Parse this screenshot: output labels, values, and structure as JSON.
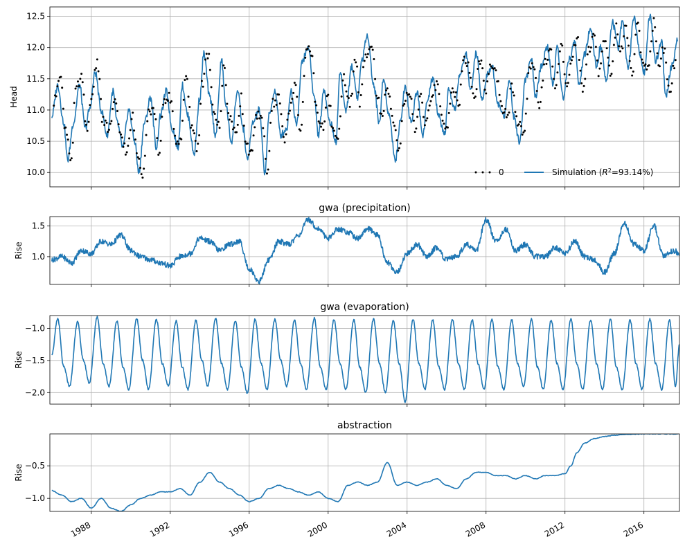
{
  "colors": {
    "simulation": "#1f77b4",
    "observations": "#000000",
    "grid": "#b0b0b0"
  },
  "chart_data": [
    {
      "type": "line",
      "panel": "head",
      "title": "",
      "xlabel": "",
      "ylabel": "Head",
      "xlim": [
        1985.9,
        2017.8
      ],
      "ylim": [
        9.77,
        12.65
      ],
      "yticks": [
        "10.0",
        "10.5",
        "11.0",
        "11.5",
        "12.0",
        "12.5"
      ],
      "grid": true,
      "legend_position": "lower-right",
      "legend": [
        "0",
        "Simulation"
      ],
      "r2_label": "=93.14%)",
      "series": [
        {
          "name": "Simulation",
          "style": "line",
          "color": "#1f77b4",
          "x": [
            1986.0,
            1986.3,
            1986.6,
            1986.8,
            1987.1,
            1987.4,
            1987.7,
            1987.9,
            1988.2,
            1988.5,
            1988.8,
            1989.1,
            1989.3,
            1989.6,
            1989.9,
            1990.2,
            1990.4,
            1990.7,
            1991.0,
            1991.3,
            1991.5,
            1991.8,
            1992.1,
            1992.4,
            1992.6,
            1992.9,
            1993.2,
            1993.5,
            1993.7,
            1994.0,
            1994.3,
            1994.6,
            1994.8,
            1995.1,
            1995.4,
            1995.7,
            1995.9,
            1996.2,
            1996.5,
            1996.8,
            1997.0,
            1997.3,
            1997.6,
            1997.9,
            1998.1,
            1998.4,
            1998.7,
            1999.0,
            1999.3,
            1999.5,
            1999.8,
            2000.1,
            2000.4,
            2000.6,
            2000.9,
            2001.2,
            2001.5,
            2001.7,
            2002.0,
            2002.3,
            2002.6,
            2002.8,
            2003.1,
            2003.4,
            2003.7,
            2003.9,
            2004.2,
            2004.5,
            2004.8,
            2005.0,
            2005.3,
            2005.6,
            2005.9,
            2006.1,
            2006.4,
            2006.7,
            2007.0,
            2007.2,
            2007.5,
            2007.8,
            2008.1,
            2008.3,
            2008.6,
            2008.9,
            2009.2,
            2009.4,
            2009.7,
            2010.0,
            2010.3,
            2010.5,
            2010.8,
            2011.1,
            2011.4,
            2011.6,
            2011.9,
            2012.2,
            2012.5,
            2012.7,
            2013.0,
            2013.3,
            2013.6,
            2013.8,
            2014.1,
            2014.4,
            2014.7,
            2014.9,
            2015.2,
            2015.5,
            2015.8,
            2016.0,
            2016.3,
            2016.6,
            2016.9,
            2017.1,
            2017.4,
            2017.7
          ],
          "values": [
            10.9,
            11.4,
            10.8,
            10.2,
            10.8,
            11.4,
            10.7,
            11.0,
            11.6,
            11.0,
            10.6,
            11.3,
            10.8,
            10.4,
            11.0,
            10.5,
            10.0,
            10.8,
            11.2,
            10.4,
            10.9,
            11.3,
            10.7,
            10.4,
            11.4,
            10.9,
            10.3,
            11.2,
            11.9,
            11.2,
            10.6,
            11.8,
            11.1,
            10.5,
            11.3,
            10.7,
            10.2,
            10.8,
            11.0,
            10.0,
            10.9,
            11.3,
            10.6,
            10.7,
            11.3,
            10.8,
            11.8,
            12.0,
            11.2,
            10.6,
            11.3,
            10.8,
            10.5,
            11.6,
            11.0,
            11.7,
            11.2,
            11.8,
            12.2,
            11.4,
            10.8,
            11.5,
            10.9,
            10.2,
            10.9,
            11.4,
            10.8,
            11.3,
            10.6,
            11.1,
            11.5,
            10.9,
            10.6,
            11.3,
            11.0,
            11.6,
            11.9,
            11.3,
            11.9,
            11.2,
            11.6,
            11.7,
            11.1,
            10.9,
            11.5,
            10.9,
            10.5,
            11.5,
            11.8,
            11.2,
            11.7,
            12.0,
            11.4,
            12.0,
            11.2,
            11.8,
            12.1,
            11.4,
            11.9,
            12.3,
            11.7,
            12.0,
            11.5,
            12.4,
            12.0,
            12.4,
            11.7,
            12.5,
            11.9,
            11.6,
            12.5,
            11.8,
            12.1,
            11.2,
            11.7,
            12.1
          ]
        },
        {
          "name": "0",
          "style": "dots",
          "color": "#000000",
          "x": [
            1986.1,
            1986.4,
            1986.7,
            1987.0,
            1987.2,
            1987.5,
            1987.8,
            1988.0,
            1988.3,
            1988.6,
            1988.9,
            1989.2,
            1989.5,
            1989.8,
            1990.1,
            1990.3,
            1990.6,
            1990.9,
            1991.2,
            1991.4,
            1991.7,
            1992.0,
            1992.3,
            1992.5,
            1992.8,
            1993.1,
            1993.4,
            1993.6,
            1993.9,
            1994.2,
            1994.5,
            1994.7,
            1995.0,
            1995.3,
            1995.6,
            1995.8,
            1996.1,
            1996.4,
            1996.7,
            1996.9,
            1997.2,
            1997.5,
            1997.8,
            1998.0,
            1998.3,
            1998.6,
            1998.9,
            1999.2,
            1999.4,
            1999.7,
            2000.0,
            2000.3,
            2000.5,
            2000.8,
            2001.1,
            2001.4,
            2001.6,
            2001.9,
            2002.2,
            2002.5,
            2002.7,
            2003.0,
            2003.3,
            2003.6,
            2003.8,
            2004.1,
            2004.4,
            2004.7,
            2004.9,
            2005.2,
            2005.5,
            2005.8,
            2006.0,
            2006.3,
            2006.6,
            2006.9,
            2007.1,
            2007.4,
            2007.7,
            2008.0,
            2008.2,
            2008.5,
            2008.8,
            2009.1,
            2009.3,
            2009.6,
            2009.9,
            2010.2,
            2010.4,
            2010.7,
            2011.0,
            2011.3,
            2011.5,
            2011.8,
            2012.1,
            2012.4,
            2012.6,
            2012.9,
            2013.2,
            2013.5,
            2013.7,
            2014.0,
            2014.3,
            2014.6,
            2014.8,
            2015.1,
            2015.4,
            2015.7,
            2015.9,
            2016.2,
            2016.5,
            2016.8,
            2017.0,
            2017.3,
            2017.6
          ],
          "values": [
            11.1,
            11.6,
            10.7,
            10.2,
            11.3,
            11.5,
            10.6,
            11.2,
            11.8,
            10.8,
            10.7,
            11.1,
            10.6,
            10.3,
            10.9,
            10.3,
            10.0,
            11.0,
            11.0,
            10.3,
            11.1,
            11.2,
            10.5,
            10.5,
            11.5,
            10.7,
            10.4,
            11.4,
            11.9,
            11.0,
            10.7,
            11.7,
            10.9,
            10.6,
            11.2,
            10.5,
            10.3,
            10.9,
            10.8,
            10.0,
            11.1,
            11.2,
            10.5,
            10.9,
            11.4,
            10.7,
            12.0,
            11.8,
            11.0,
            10.7,
            11.2,
            10.6,
            10.6,
            11.5,
            11.1,
            11.8,
            11.1,
            11.9,
            12.1,
            11.2,
            10.9,
            11.3,
            10.8,
            10.3,
            11.1,
            11.3,
            10.7,
            11.2,
            10.7,
            11.2,
            11.4,
            10.8,
            10.7,
            11.4,
            11.1,
            11.8,
            11.7,
            11.2,
            11.8,
            11.3,
            11.7,
            11.6,
            11.0,
            10.9,
            11.4,
            10.8,
            10.6,
            11.6,
            11.7,
            11.1,
            11.8,
            11.9,
            11.3,
            12.0,
            11.4,
            11.9,
            12.2,
            11.3,
            12.0,
            12.2,
            11.6,
            12.1,
            11.6,
            12.3,
            11.9,
            12.3,
            11.6,
            12.4,
            11.8,
            11.7,
            12.4,
            11.7,
            12.0,
            11.3,
            11.8
          ]
        }
      ]
    },
    {
      "type": "line",
      "panel": "precipitation",
      "title": "gwa (precipitation)",
      "xlabel": "",
      "ylabel": "Rise",
      "xlim": [
        1985.9,
        2017.8
      ],
      "ylim": [
        0.55,
        1.65
      ],
      "yticks": [
        "1.0",
        "1.5"
      ],
      "grid": true,
      "series": [
        {
          "x": [
            1986.0,
            1986.5,
            1987.0,
            1987.5,
            1988.0,
            1988.5,
            1989.0,
            1989.5,
            1990.0,
            1990.5,
            1991.0,
            1991.5,
            1992.0,
            1992.5,
            1993.0,
            1993.5,
            1994.0,
            1994.5,
            1995.0,
            1995.5,
            1996.0,
            1996.5,
            1997.0,
            1997.5,
            1998.0,
            1998.5,
            1999.0,
            1999.5,
            2000.0,
            2000.5,
            2001.0,
            2001.5,
            2002.0,
            2002.5,
            2003.0,
            2003.5,
            2004.0,
            2004.5,
            2005.0,
            2005.5,
            2006.0,
            2006.5,
            2007.0,
            2007.5,
            2008.0,
            2008.5,
            2009.0,
            2009.5,
            2010.0,
            2010.5,
            2011.0,
            2011.5,
            2012.0,
            2012.5,
            2013.0,
            2013.5,
            2014.0,
            2014.5,
            2015.0,
            2015.5,
            2016.0,
            2016.5,
            2017.0,
            2017.5,
            2017.8
          ],
          "values": [
            0.95,
            1.0,
            0.9,
            1.1,
            1.05,
            1.25,
            1.2,
            1.35,
            1.1,
            1.0,
            0.95,
            0.9,
            0.85,
            1.0,
            1.05,
            1.3,
            1.25,
            1.1,
            1.2,
            1.25,
            0.8,
            0.6,
            0.95,
            1.25,
            1.2,
            1.35,
            1.6,
            1.45,
            1.3,
            1.45,
            1.4,
            1.3,
            1.45,
            1.35,
            0.9,
            0.75,
            1.05,
            1.2,
            1.0,
            1.15,
            0.95,
            1.0,
            1.2,
            1.1,
            1.6,
            1.25,
            1.45,
            1.1,
            1.2,
            1.0,
            1.0,
            1.15,
            1.05,
            1.25,
            1.0,
            0.95,
            0.75,
            1.05,
            1.55,
            1.2,
            1.1,
            1.5,
            1.0,
            1.1,
            1.05
          ]
        }
      ]
    },
    {
      "type": "line",
      "panel": "evaporation",
      "title": "gwa (evaporation)",
      "xlabel": "",
      "ylabel": "Rise",
      "xlim": [
        1985.9,
        2017.8
      ],
      "ylim": [
        -2.18,
        -0.8
      ],
      "yticks": [
        "−2.0",
        "−1.5",
        "−1.0"
      ],
      "grid": true,
      "period_years": 1.0,
      "series": [
        {
          "x": [
            1986.0,
            1986.3,
            1986.6,
            1986.9,
            1987.3,
            1987.6,
            1987.9,
            1988.3,
            1988.6,
            1988.9,
            1989.3,
            1989.6,
            1989.9,
            1990.3,
            1990.6,
            1990.9,
            1991.3,
            1991.6,
            1991.9,
            1992.3,
            1992.6,
            1992.9,
            1993.3,
            1993.6,
            1993.9,
            1994.3,
            1994.6,
            1994.9,
            1995.3,
            1995.6,
            1995.9,
            1996.3,
            1996.6,
            1996.9,
            1997.3,
            1997.6,
            1997.9,
            1998.3,
            1998.6,
            1998.9,
            1999.3,
            1999.6,
            1999.9,
            2000.3,
            2000.6,
            2000.9,
            2001.3,
            2001.6,
            2001.9,
            2002.3,
            2002.6,
            2002.9,
            2003.3,
            2003.6,
            2003.9,
            2004.3,
            2004.6,
            2004.9,
            2005.3,
            2005.6,
            2005.9,
            2006.3,
            2006.6,
            2006.9,
            2007.3,
            2007.6,
            2007.9,
            2008.3,
            2008.6,
            2008.9,
            2009.3,
            2009.6,
            2009.9,
            2010.3,
            2010.6,
            2010.9,
            2011.3,
            2011.6,
            2011.9,
            2012.3,
            2012.6,
            2012.9,
            2013.3,
            2013.6,
            2013.9,
            2014.3,
            2014.6,
            2014.9,
            2015.3,
            2015.6,
            2015.9,
            2016.3,
            2016.6,
            2016.9,
            2017.3,
            2017.6,
            2017.8
          ],
          "values": [
            -1.4,
            -0.85,
            -1.6,
            -1.9,
            -0.9,
            -1.5,
            -1.85,
            -0.82,
            -1.55,
            -1.9,
            -0.88,
            -1.6,
            -1.95,
            -0.85,
            -1.5,
            -1.95,
            -0.86,
            -1.55,
            -1.9,
            -0.88,
            -1.6,
            -1.95,
            -0.87,
            -1.5,
            -1.9,
            -0.85,
            -1.55,
            -1.95,
            -0.88,
            -1.6,
            -2.0,
            -0.86,
            -1.55,
            -1.95,
            -0.86,
            -1.5,
            -1.9,
            -0.87,
            -1.55,
            -1.95,
            -0.84,
            -1.6,
            -1.95,
            -0.86,
            -1.55,
            -1.95,
            -0.87,
            -1.6,
            -2.0,
            -0.85,
            -1.55,
            -2.0,
            -0.88,
            -1.55,
            -2.15,
            -0.86,
            -1.55,
            -1.95,
            -0.87,
            -1.6,
            -1.95,
            -0.86,
            -1.55,
            -1.95,
            -0.87,
            -1.55,
            -1.95,
            -0.86,
            -1.6,
            -1.95,
            -0.87,
            -1.55,
            -1.9,
            -0.86,
            -1.6,
            -1.95,
            -0.87,
            -1.55,
            -1.95,
            -0.86,
            -1.55,
            -1.95,
            -0.87,
            -1.55,
            -1.95,
            -0.86,
            -1.6,
            -1.95,
            -0.87,
            -1.55,
            -1.95,
            -0.86,
            -1.55,
            -1.95,
            -0.87,
            -1.9,
            -1.25
          ]
        }
      ]
    },
    {
      "type": "line",
      "panel": "abstraction",
      "title": "abstraction",
      "xlabel": "",
      "ylabel": "Rise",
      "xlim": [
        1985.9,
        2017.8
      ],
      "ylim": [
        -1.2,
        -0.01
      ],
      "yticks": [
        "−1.0",
        "−0.5"
      ],
      "grid": true,
      "xticks": [
        "1988",
        "1992",
        "1996",
        "2000",
        "2004",
        "2008",
        "2012",
        "2016"
      ],
      "series": [
        {
          "x": [
            1986.0,
            1986.5,
            1987.0,
            1987.5,
            1988.0,
            1988.5,
            1989.0,
            1989.5,
            1990.0,
            1990.5,
            1991.0,
            1991.5,
            1992.0,
            1992.5,
            1993.0,
            1993.5,
            1994.0,
            1994.5,
            1995.0,
            1995.5,
            1996.0,
            1996.5,
            1997.0,
            1997.5,
            1998.0,
            1998.5,
            1999.0,
            1999.5,
            2000.0,
            2000.5,
            2001.0,
            2001.5,
            2002.0,
            2002.5,
            2003.0,
            2003.5,
            2004.0,
            2004.5,
            2005.0,
            2005.5,
            2006.0,
            2006.5,
            2007.0,
            2007.5,
            2008.0,
            2008.5,
            2009.0,
            2009.5,
            2010.0,
            2010.5,
            2011.0,
            2011.5,
            2012.0,
            2012.3,
            2012.6,
            2013.0,
            2013.5,
            2014.0,
            2014.5,
            2015.0,
            2015.5,
            2016.0,
            2016.5,
            2017.0,
            2017.8
          ],
          "values": [
            -0.88,
            -0.95,
            -1.05,
            -1.0,
            -1.15,
            -1.0,
            -1.15,
            -1.2,
            -1.1,
            -1.0,
            -0.95,
            -0.9,
            -0.9,
            -0.85,
            -0.95,
            -0.75,
            -0.6,
            -0.75,
            -0.85,
            -0.95,
            -1.05,
            -1.0,
            -0.85,
            -0.8,
            -0.85,
            -0.9,
            -0.95,
            -0.9,
            -1.0,
            -1.05,
            -0.8,
            -0.75,
            -0.8,
            -0.75,
            -0.45,
            -0.8,
            -0.75,
            -0.8,
            -0.75,
            -0.7,
            -0.8,
            -0.85,
            -0.7,
            -0.6,
            -0.6,
            -0.65,
            -0.65,
            -0.7,
            -0.65,
            -0.7,
            -0.65,
            -0.65,
            -0.62,
            -0.5,
            -0.3,
            -0.15,
            -0.08,
            -0.05,
            -0.03,
            -0.02,
            -0.015,
            -0.01,
            -0.01,
            -0.01,
            -0.01
          ]
        }
      ]
    }
  ]
}
